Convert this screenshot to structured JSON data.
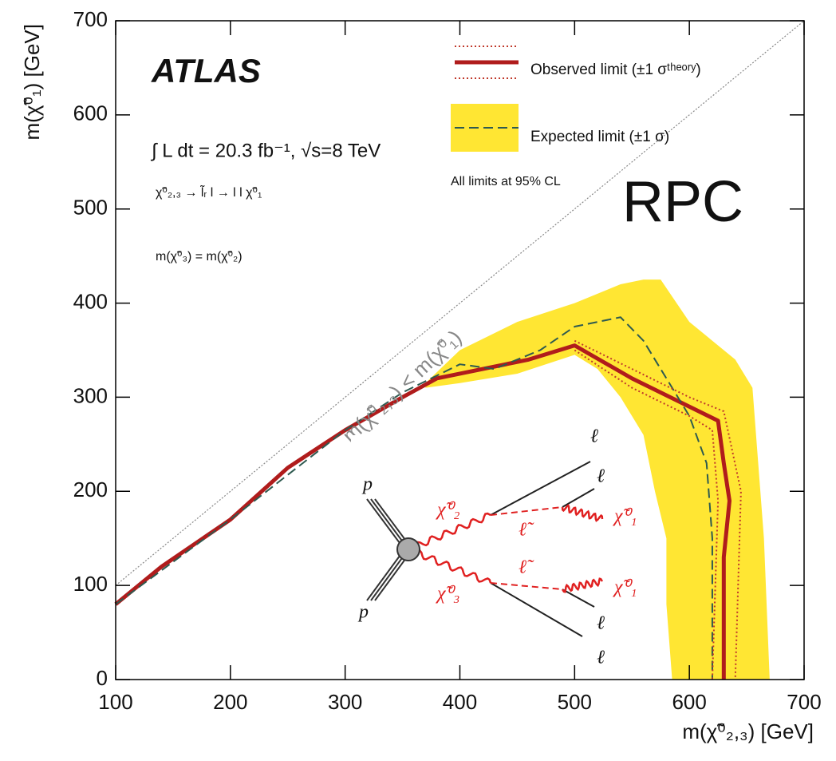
{
  "chart_data": {
    "type": "line",
    "xlabel": "m(χ̃⁰₂,₃) [GeV]",
    "ylabel": "m(χ̃⁰₁) [GeV]",
    "xlim": [
      100,
      700
    ],
    "ylim": [
      0,
      700
    ],
    "xticks": [
      100,
      200,
      300,
      400,
      500,
      600,
      700
    ],
    "yticks": [
      0,
      100,
      200,
      300,
      400,
      500,
      600,
      700
    ],
    "diagonal": true,
    "annotations": {
      "experiment": "ATLAS",
      "luminosity": "∫ L dt = 20.3 fb⁻¹, √s=8 TeV",
      "process": "χ̃⁰₂,₃ → l̃ᵣ l → l l χ̃⁰₁",
      "mass_relation": "m(χ̃⁰₃) = m(χ̃⁰₂)",
      "cl_note": "All limits at 95% CL",
      "tag": "RPC",
      "diagonal_label": "m(χ̃⁰₂,₃) < m(χ̃⁰₁)"
    },
    "series": [
      {
        "kind": "band",
        "color": "#ffe633",
        "x": [
          370,
          400,
          450,
          500,
          540,
          560,
          575,
          600,
          640,
          655,
          660,
          665,
          670,
          585,
          580,
          580,
          570,
          560,
          540,
          520,
          500,
          450,
          400,
          370
        ],
        "y": [
          315,
          350,
          380,
          400,
          420,
          425,
          425,
          380,
          340,
          310,
          230,
          150,
          0,
          0,
          80,
          150,
          200,
          260,
          300,
          330,
          345,
          325,
          315,
          310
        ]
      },
      {
        "name": "Observed limit (±1 σᵗʰᵉᵒʳʸ)",
        "color": "#b01c1c",
        "linestyle": "solid",
        "linewidth": 5,
        "x": [
          100,
          140,
          200,
          250,
          300,
          350,
          380,
          420,
          460,
          500,
          550,
          600,
          625,
          630,
          635,
          630,
          630,
          630
        ],
        "y": [
          80,
          120,
          170,
          225,
          265,
          300,
          320,
          330,
          340,
          355,
          320,
          290,
          275,
          230,
          190,
          130,
          50,
          0
        ]
      },
      {
        "name": "Expected limit (±1 σ)",
        "color": "#2e5a50",
        "linestyle": "dashed",
        "linewidth": 2,
        "x": [
          100,
          200,
          300,
          350,
          400,
          430,
          470,
          500,
          540,
          560,
          580,
          600,
          615,
          620,
          620,
          620
        ],
        "y": [
          80,
          170,
          265,
          305,
          335,
          330,
          350,
          375,
          385,
          360,
          320,
          280,
          230,
          150,
          50,
          0
        ]
      },
      {
        "color": "#c0392b",
        "linestyle": "dotted",
        "linewidth": 2,
        "x": [
          500,
          550,
          600,
          630,
          645,
          640
        ],
        "y": [
          360,
          330,
          300,
          285,
          200,
          0
        ]
      },
      {
        "color": "#c0392b",
        "linestyle": "dotted",
        "linewidth": 2,
        "x": [
          500,
          550,
          600,
          620,
          625,
          620
        ],
        "y": [
          350,
          310,
          280,
          265,
          190,
          0
        ]
      }
    ],
    "inset": {
      "labels": [
        "p",
        "p",
        "χ̃⁰₂",
        "χ̃⁰₃",
        "ℓ̃",
        "ℓ̃",
        "χ̃⁰₁",
        "χ̃⁰₁",
        "ℓ",
        "ℓ",
        "ℓ",
        "ℓ"
      ]
    }
  }
}
